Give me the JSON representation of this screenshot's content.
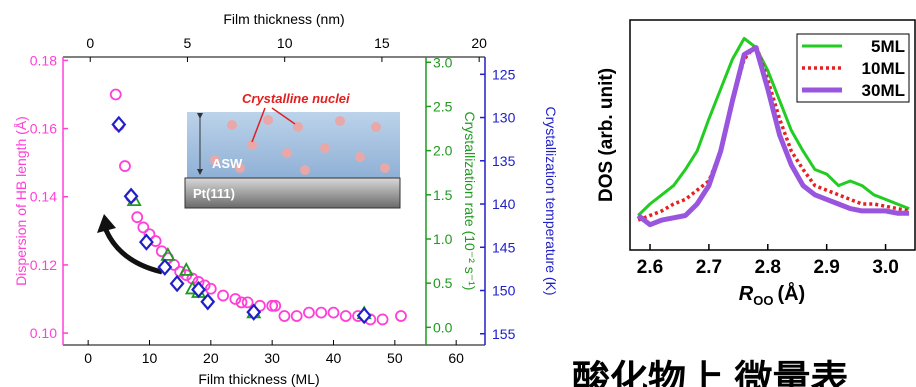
{
  "chart_data": [
    {
      "type": "scatter",
      "x_label": "Film thickness (ML)",
      "x2_label": "Film thickness (nm)",
      "y_label": "Dispersion of HB length (Å)",
      "y2_label": "Crystallization rate (10⁻² s⁻¹)",
      "y3_label": "Crystallization temperature (K)",
      "xlim": [
        -4.1,
        64.7
      ],
      "xticks": [
        0,
        10,
        20,
        30,
        40,
        50,
        60
      ],
      "x2lim": [
        -1.4,
        20.3
      ],
      "x2ticks": [
        0,
        5,
        10,
        15,
        20
      ],
      "ylim": [
        0.0965,
        0.181
      ],
      "yticks": [
        {
          "value": 0.1,
          "label": "0.10"
        },
        {
          "value": 0.12,
          "label": "0.12"
        },
        {
          "value": 0.14,
          "label": "0.14"
        },
        {
          "value": 0.16,
          "label": "0.16"
        },
        {
          "value": 0.18,
          "label": "0.18"
        }
      ],
      "y2lim": [
        -0.2,
        3.06
      ],
      "y2ticks": [
        {
          "value": 0,
          "label": "0.0"
        },
        {
          "value": 0.5,
          "label": "0.5"
        },
        {
          "value": 1,
          "label": "1.0"
        },
        {
          "value": 1.5,
          "label": "1.5"
        },
        {
          "value": 2,
          "label": "2.0"
        },
        {
          "value": 2.5,
          "label": "2.5"
        },
        {
          "value": 3,
          "label": "3.0"
        }
      ],
      "y3lim": [
        156.3,
        123.0
      ],
      "y3ticks": [
        125,
        130,
        135,
        140,
        145,
        150,
        155
      ],
      "y_color": "#ff40d8",
      "y2_color": "#1f9a1f",
      "y3_color": "#2020c8",
      "series": [
        {
          "color": "#ff40d8",
          "marker": "circle",
          "axis": "y",
          "x": [
            4.5,
            5,
            6,
            7,
            8,
            9,
            10,
            11,
            12,
            13,
            14,
            15,
            16,
            17,
            18,
            19,
            20,
            22,
            24,
            25,
            26,
            28,
            30,
            30.5,
            32,
            34,
            36,
            38,
            40,
            42,
            44,
            46,
            48,
            51
          ],
          "values": [
            0.17,
            0.161,
            0.149,
            0.14,
            0.134,
            0.131,
            0.129,
            0.127,
            0.124,
            0.122,
            0.12,
            0.118,
            0.117,
            0.116,
            0.115,
            0.114,
            0.113,
            0.111,
            0.11,
            0.109,
            0.109,
            0.108,
            0.108,
            0.108,
            0.105,
            0.105,
            0.106,
            0.106,
            0.106,
            0.105,
            0.105,
            0.104,
            0.104,
            0.105
          ]
        },
        {
          "color": "#1f9a1f",
          "marker": "triangle",
          "axis": "y2",
          "x": [
            7.5,
            13,
            16,
            17,
            18,
            27,
            45
          ],
          "values": [
            1.44,
            0.82,
            0.65,
            0.44,
            0.4,
            0.17,
            0.16
          ]
        },
        {
          "color": "#2020c8",
          "marker": "diamond",
          "axis": "y3",
          "x": [
            5,
            7,
            9.5,
            12.5,
            14.5,
            18,
            19.5,
            27,
            45
          ],
          "values": [
            130.8,
            139.1,
            144.4,
            147.3,
            149.2,
            149.9,
            151.3,
            152.5,
            152.9
          ]
        }
      ],
      "annotations": {
        "nuclei": "Crystalline nuclei",
        "asw": "ASW",
        "substrate": "Pt(111)"
      }
    },
    {
      "type": "line",
      "y_label": "DOS (arb. unit)",
      "x_label": {
        "symbol": "R",
        "sub": "OO",
        "unit": "(Å)"
      },
      "xlim": [
        2.566,
        3.05
      ],
      "xticks": [
        2.6,
        2.7,
        2.8,
        2.9,
        {
          "value": 3,
          "label": "3.0"
        }
      ],
      "ylim": [
        0,
        1
      ],
      "x": [
        2.58,
        2.6,
        2.62,
        2.64,
        2.66,
        2.68,
        2.7,
        2.72,
        2.74,
        2.76,
        2.78,
        2.8,
        2.82,
        2.84,
        2.86,
        2.88,
        2.9,
        2.92,
        2.94,
        2.96,
        2.98,
        3.0,
        3.02,
        3.04
      ],
      "legend": "upper right",
      "series": [
        {
          "name": "5ML",
          "color": "#22cc22",
          "style": "solid",
          "width": 3,
          "values": [
            0.15,
            0.2,
            0.24,
            0.28,
            0.35,
            0.43,
            0.57,
            0.7,
            0.83,
            0.92,
            0.88,
            0.78,
            0.65,
            0.52,
            0.43,
            0.35,
            0.33,
            0.28,
            0.3,
            0.28,
            0.24,
            0.22,
            0.2,
            0.18
          ]
        },
        {
          "name": "10ML",
          "color": "#e82020",
          "style": "dotted",
          "width": 3.5,
          "values": [
            0.13,
            0.15,
            0.17,
            0.2,
            0.22,
            0.26,
            0.3,
            0.43,
            0.65,
            0.83,
            0.89,
            0.74,
            0.57,
            0.43,
            0.35,
            0.28,
            0.26,
            0.24,
            0.22,
            0.2,
            0.2,
            0.19,
            0.18,
            0.17
          ]
        },
        {
          "name": "30ML",
          "color": "#9955dd",
          "style": "solid",
          "width": 5,
          "values": [
            0.15,
            0.11,
            0.13,
            0.14,
            0.15,
            0.2,
            0.28,
            0.43,
            0.65,
            0.85,
            0.88,
            0.7,
            0.5,
            0.37,
            0.28,
            0.24,
            0.22,
            0.2,
            0.18,
            0.17,
            0.17,
            0.17,
            0.16,
            0.16
          ]
        }
      ]
    }
  ],
  "caption": "酸化物上 微量表"
}
